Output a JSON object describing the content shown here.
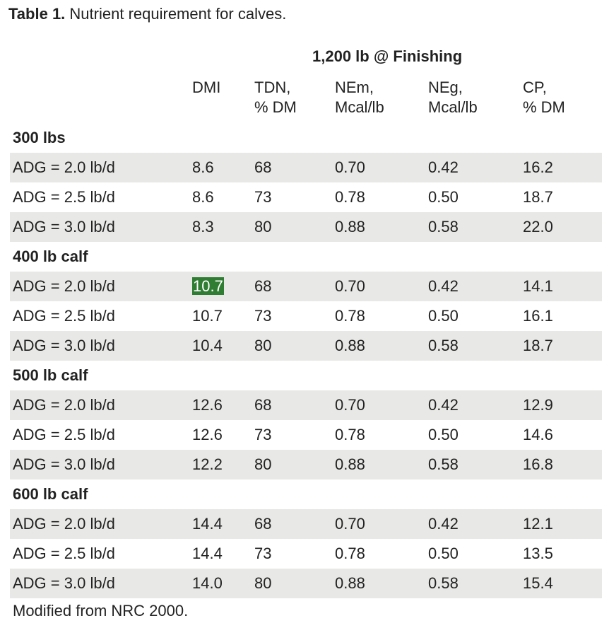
{
  "caption": {
    "label": "Table 1.",
    "text": "Nutrient requirement for calves."
  },
  "group_header": "1,200 lb @ Finishing",
  "columns": [
    {
      "line1": "DMI",
      "line2": ""
    },
    {
      "line1": "TDN,",
      "line2": "% DM"
    },
    {
      "line1": "NEm,",
      "line2": "Mcal/lb"
    },
    {
      "line1": "NEg,",
      "line2": "Mcal/lb"
    },
    {
      "line1": "CP,",
      "line2": "% DM"
    }
  ],
  "sections": [
    {
      "title": "300 lbs",
      "rows": [
        {
          "label": "ADG = 2.0 lb/d",
          "values": [
            "8.6",
            "68",
            "0.70",
            "0.42",
            "16.2"
          ]
        },
        {
          "label": "ADG = 2.5 lb/d",
          "values": [
            "8.6",
            "73",
            "0.78",
            "0.50",
            "18.7"
          ]
        },
        {
          "label": "ADG = 3.0 lb/d",
          "values": [
            "8.3",
            "80",
            "0.88",
            "0.58",
            "22.0"
          ]
        }
      ]
    },
    {
      "title": "400 lb calf",
      "rows": [
        {
          "label": "ADG = 2.0 lb/d",
          "values": [
            "10.7",
            "68",
            "0.70",
            "0.42",
            "14.1"
          ],
          "highlight": 0
        },
        {
          "label": "ADG = 2.5 lb/d",
          "values": [
            "10.7",
            "73",
            "0.78",
            "0.50",
            "16.1"
          ]
        },
        {
          "label": "ADG = 3.0 lb/d",
          "values": [
            "10.4",
            "80",
            "0.88",
            "0.58",
            "18.7"
          ]
        }
      ]
    },
    {
      "title": "500 lb calf",
      "rows": [
        {
          "label": "ADG = 2.0 lb/d",
          "values": [
            "12.6",
            "68",
            "0.70",
            "0.42",
            "12.9"
          ]
        },
        {
          "label": "ADG = 2.5 lb/d",
          "values": [
            "12.6",
            "73",
            "0.78",
            "0.50",
            "14.6"
          ]
        },
        {
          "label": "ADG = 3.0 lb/d",
          "values": [
            "12.2",
            "80",
            "0.88",
            "0.58",
            "16.8"
          ]
        }
      ]
    },
    {
      "title": "600 lb calf",
      "rows": [
        {
          "label": "ADG = 2.0 lb/d",
          "values": [
            "14.4",
            "68",
            "0.70",
            "0.42",
            "12.1"
          ]
        },
        {
          "label": "ADG = 2.5 lb/d",
          "values": [
            "14.4",
            "73",
            "0.78",
            "0.50",
            "13.5"
          ]
        },
        {
          "label": "ADG = 3.0 lb/d",
          "values": [
            "14.0",
            "80",
            "0.88",
            "0.58",
            "15.4"
          ]
        }
      ]
    }
  ],
  "footnote": "Modified from NRC 2000.",
  "colors": {
    "row_shade": "#e8e8e6",
    "highlight": "#2f7d32",
    "text": "#222222"
  }
}
